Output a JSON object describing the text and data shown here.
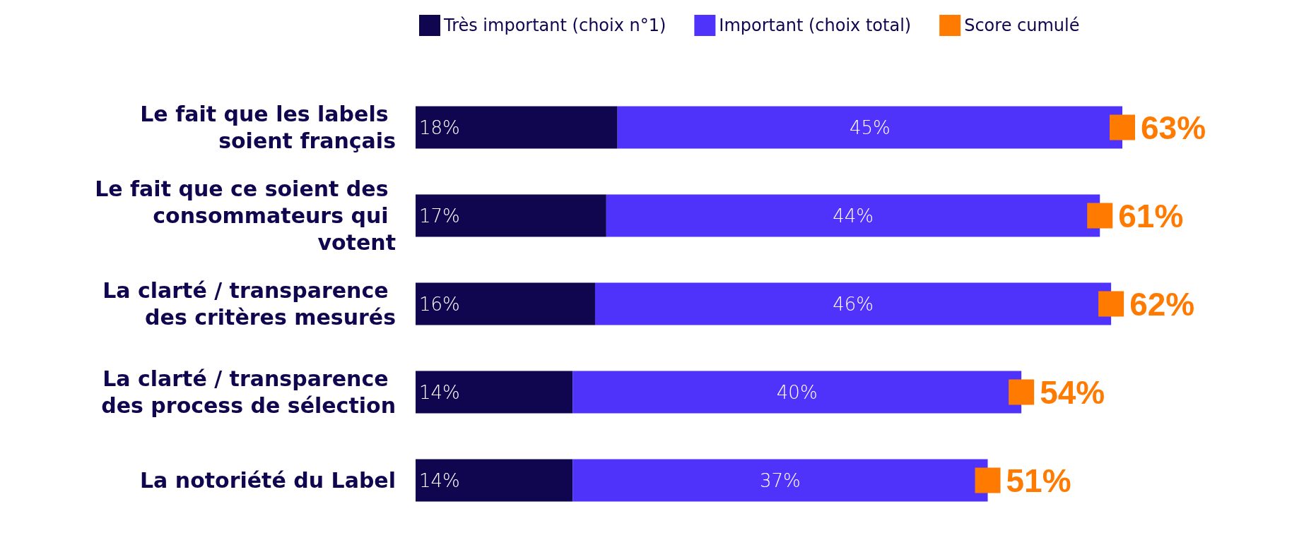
{
  "chart_data": {
    "type": "bar",
    "orientation": "horizontal",
    "stacked": true,
    "legend": "top",
    "grid": false,
    "tick_labels": "y",
    "categories": [
      "Le fait que les labels soient français",
      "Le fait que ce soient des consommateurs qui votent",
      "La clarté / transparence des critères mesurés",
      "La clarté / transparence des process de sélection",
      "La notoriété du Label"
    ],
    "series": [
      {
        "name": "Très important (choix n°1)",
        "color": "#10054f",
        "values": [
          18,
          17,
          16,
          14,
          14
        ],
        "value_labels": [
          "18%",
          "17%",
          "16%",
          "14%",
          "14%"
        ]
      },
      {
        "name": "Important (choix total)",
        "color": "#5033fb",
        "values": [
          45,
          44,
          46,
          40,
          37
        ],
        "value_labels": [
          "45%",
          "44%",
          "46%",
          "40%",
          "37%"
        ]
      },
      {
        "name": "Score cumulé",
        "type": "scatter",
        "marker": "square",
        "color": "#ff7a00",
        "values": [
          63,
          61,
          62,
          54,
          51
        ],
        "value_labels": [
          "63%",
          "61%",
          "62%",
          "54%",
          "51%"
        ]
      }
    ]
  }
}
